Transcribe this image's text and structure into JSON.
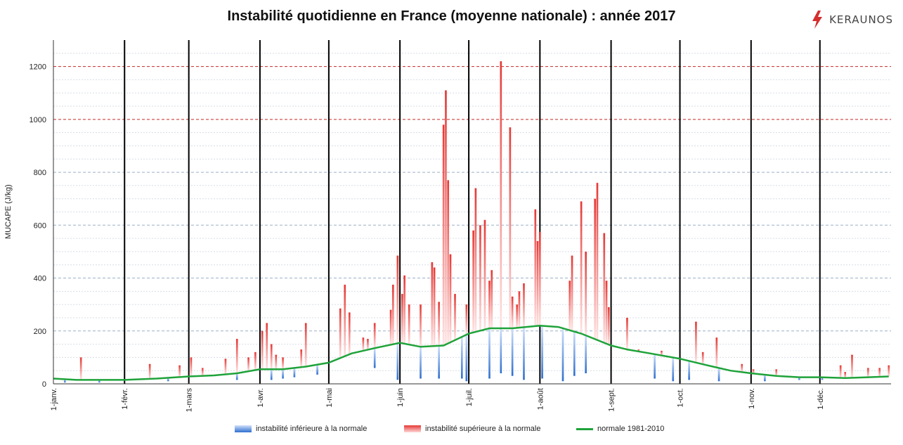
{
  "title": "Instabilité quotidienne en France (moyenne nationale) : année 2017",
  "logo": {
    "text": "KERAUNOS",
    "icon": "lightning-bolt-icon",
    "color": "#d32f2f"
  },
  "chart_data": {
    "type": "bar",
    "title": "Instabilité quotidienne en France (moyenne nationale) : année 2017",
    "xlabel": "",
    "ylabel": "MUCAPE (J/kg)",
    "ylim": [
      0,
      1300
    ],
    "yticks": [
      0,
      200,
      400,
      600,
      800,
      1000,
      1200
    ],
    "xlim": [
      0,
      365
    ],
    "grid": true,
    "x_tick_labels": [
      "1-janv.",
      "1-févr.",
      "1-mars",
      "1-avr.",
      "1-mai",
      "1-juin",
      "1-juil.",
      "1-août",
      "1-sept.",
      "1-oct.",
      "1-nov.",
      "1-déc."
    ],
    "x_tick_days": [
      0,
      31,
      59,
      90,
      120,
      151,
      181,
      212,
      243,
      273,
      304,
      334
    ],
    "reference_lines": [
      1000,
      1200
    ],
    "legend_position": "bottom",
    "legend": [
      {
        "label": "instabilité inférieure à la normale",
        "color": "#2f6fcf"
      },
      {
        "label": "instabilité supérieure à la normale",
        "color": "#e53935"
      },
      {
        "label": "normale 1981-2010",
        "color": "#1fa33a"
      }
    ],
    "normal_curve": {
      "name": "normale 1981-2010",
      "x": [
        0,
        10,
        20,
        31,
        45,
        59,
        70,
        80,
        90,
        100,
        110,
        120,
        130,
        140,
        151,
        160,
        170,
        181,
        190,
        200,
        212,
        220,
        230,
        243,
        250,
        260,
        273,
        285,
        295,
        304,
        315,
        325,
        334,
        345,
        355,
        364
      ],
      "y": [
        20,
        15,
        15,
        15,
        20,
        28,
        32,
        40,
        55,
        55,
        65,
        80,
        115,
        135,
        155,
        140,
        145,
        190,
        210,
        210,
        220,
        215,
        190,
        145,
        130,
        115,
        95,
        70,
        50,
        40,
        30,
        25,
        25,
        22,
        25,
        28
      ]
    },
    "spikes": {
      "x": [
        12,
        42,
        55,
        60,
        65,
        75,
        80,
        85,
        88,
        91,
        93,
        95,
        97,
        100,
        108,
        110,
        125,
        127,
        129,
        135,
        137,
        140,
        147,
        148,
        150,
        152,
        153,
        155,
        160,
        165,
        166,
        168,
        170,
        171,
        172,
        173,
        175,
        180,
        183,
        184,
        186,
        188,
        190,
        191,
        195,
        199,
        200,
        202,
        203,
        205,
        210,
        211,
        212,
        225,
        226,
        230,
        232,
        236,
        237,
        240,
        241,
        242,
        250,
        255,
        265,
        280,
        283,
        289,
        300,
        305,
        315,
        343,
        345,
        348,
        355,
        360,
        364
      ],
      "y": [
        100,
        75,
        70,
        100,
        60,
        95,
        170,
        100,
        120,
        200,
        230,
        150,
        110,
        100,
        130,
        230,
        285,
        375,
        270,
        175,
        170,
        230,
        280,
        375,
        485,
        340,
        410,
        300,
        300,
        460,
        440,
        310,
        980,
        1110,
        770,
        490,
        340,
        300,
        580,
        740,
        600,
        620,
        390,
        430,
        1220,
        970,
        330,
        300,
        350,
        380,
        660,
        540,
        575,
        390,
        485,
        690,
        500,
        700,
        760,
        570,
        390,
        290,
        250,
        130,
        125,
        235,
        120,
        175,
        75,
        55,
        55,
        70,
        45,
        110,
        60,
        60,
        70
      ]
    },
    "deficits": {
      "x": [
        5,
        20,
        50,
        80,
        95,
        100,
        105,
        115,
        140,
        150,
        160,
        168,
        178,
        180,
        190,
        195,
        200,
        205,
        213,
        222,
        227,
        232,
        262,
        270,
        277,
        290,
        310,
        325,
        335
      ],
      "y": [
        5,
        5,
        10,
        15,
        15,
        20,
        25,
        35,
        60,
        15,
        20,
        20,
        20,
        10,
        20,
        40,
        30,
        15,
        20,
        10,
        30,
        40,
        20,
        10,
        15,
        10,
        10,
        15,
        15
      ]
    }
  }
}
